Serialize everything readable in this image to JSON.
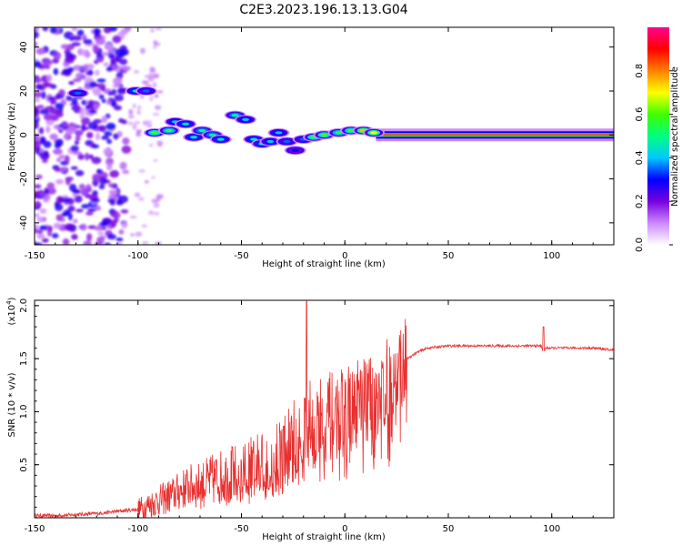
{
  "title": "C2E3.2023.196.13.13.G04",
  "chart_data": [
    {
      "type": "heatmap",
      "xlabel": "Height of straight line (km)",
      "ylabel": "Frequency (Hz)",
      "xlim": [
        -150,
        130
      ],
      "ylim": [
        -50,
        49
      ],
      "xticks": [
        -150,
        -100,
        -50,
        0,
        50,
        100
      ],
      "yticks": [
        -40,
        -20,
        0,
        20,
        40
      ],
      "colorbar": {
        "label": "Normalized spectral amplitude",
        "range": [
          0,
          1
        ],
        "ticks": [
          0.0,
          0.2,
          0.4,
          0.6,
          0.8
        ],
        "colors": [
          "#ffffff",
          "#cc88ff",
          "#7700dd",
          "#0000ff",
          "#00c8ff",
          "#00ff80",
          "#40ff00",
          "#ffff00",
          "#ff8000",
          "#ff0000",
          "#ff0090"
        ]
      },
      "blobs": [
        {
          "x": -129,
          "y": 19,
          "v": 0.35
        },
        {
          "x": -101,
          "y": 20,
          "v": 0.45
        },
        {
          "x": -96,
          "y": 20,
          "v": 0.35
        },
        {
          "x": -92,
          "y": 1,
          "v": 0.6
        },
        {
          "x": -85,
          "y": 2,
          "v": 0.55
        },
        {
          "x": -82,
          "y": 6,
          "v": 0.4
        },
        {
          "x": -77,
          "y": 5,
          "v": 0.45
        },
        {
          "x": -73,
          "y": -1,
          "v": 0.45
        },
        {
          "x": -69,
          "y": 2,
          "v": 0.5
        },
        {
          "x": -64,
          "y": 0,
          "v": 0.5
        },
        {
          "x": -60,
          "y": -2,
          "v": 0.45
        },
        {
          "x": -53,
          "y": 9,
          "v": 0.5
        },
        {
          "x": -48,
          "y": 7,
          "v": 0.4
        },
        {
          "x": -44,
          "y": -2,
          "v": 0.45
        },
        {
          "x": -40,
          "y": -4,
          "v": 0.45
        },
        {
          "x": -36,
          "y": -3,
          "v": 0.4
        },
        {
          "x": -32,
          "y": 1,
          "v": 0.4
        },
        {
          "x": -28,
          "y": -3,
          "v": 0.35
        },
        {
          "x": -24,
          "y": -7,
          "v": 0.3
        },
        {
          "x": -20,
          "y": -2,
          "v": 0.35
        },
        {
          "x": -15,
          "y": -1,
          "v": 0.6
        },
        {
          "x": -10,
          "y": 0,
          "v": 0.6
        },
        {
          "x": -3,
          "y": 1,
          "v": 0.55
        },
        {
          "x": 3,
          "y": 2,
          "v": 0.6
        },
        {
          "x": 9,
          "y": 2,
          "v": 0.75
        },
        {
          "x": 14,
          "y": 1,
          "v": 0.7
        }
      ],
      "band": {
        "x_start": 15,
        "x_end": 130,
        "y": 0,
        "v": 0.85
      }
    },
    {
      "type": "line",
      "xlabel": "Height of straight line (km)",
      "ylabel": "SNR (10 * v/v)",
      "y_multiplier_label": "(x10",
      "y_multiplier_exp": "4",
      "xlim": [
        -150,
        130
      ],
      "ylim": [
        0,
        2.05
      ],
      "xticks": [
        -150,
        -100,
        -50,
        0,
        50,
        100
      ],
      "yticks": [
        0.5,
        1.0,
        1.5,
        2.0
      ],
      "ytick_labels": [
        "0.5",
        "1.0",
        "1.5",
        "2.0"
      ],
      "color": "#e83030",
      "series": [
        {
          "x": [
            -150,
            -140,
            -130,
            -120,
            -110,
            -100,
            -95,
            -90,
            -85,
            -80,
            -75,
            -70,
            -65,
            -60,
            -55,
            -50,
            -45,
            -40,
            -35,
            -30,
            -25,
            -20,
            -18,
            -15,
            -10,
            -5,
            0,
            5,
            10,
            15,
            20,
            25,
            30,
            35,
            40,
            50,
            60,
            70,
            80,
            90,
            95,
            96,
            97,
            100,
            110,
            120,
            130
          ],
          "y": [
            0.02,
            0.02,
            0.03,
            0.04,
            0.06,
            0.08,
            0.12,
            0.16,
            0.2,
            0.25,
            0.3,
            0.3,
            0.35,
            0.38,
            0.4,
            0.42,
            0.45,
            0.5,
            0.55,
            0.6,
            0.7,
            0.8,
            0.9,
            0.85,
            0.95,
            0.95,
            1.0,
            1.05,
            1.1,
            1.15,
            1.25,
            1.4,
            1.5,
            1.56,
            1.6,
            1.62,
            1.62,
            1.62,
            1.62,
            1.62,
            1.62,
            1.55,
            1.6,
            1.6,
            1.6,
            1.6,
            1.58
          ]
        }
      ]
    }
  ]
}
